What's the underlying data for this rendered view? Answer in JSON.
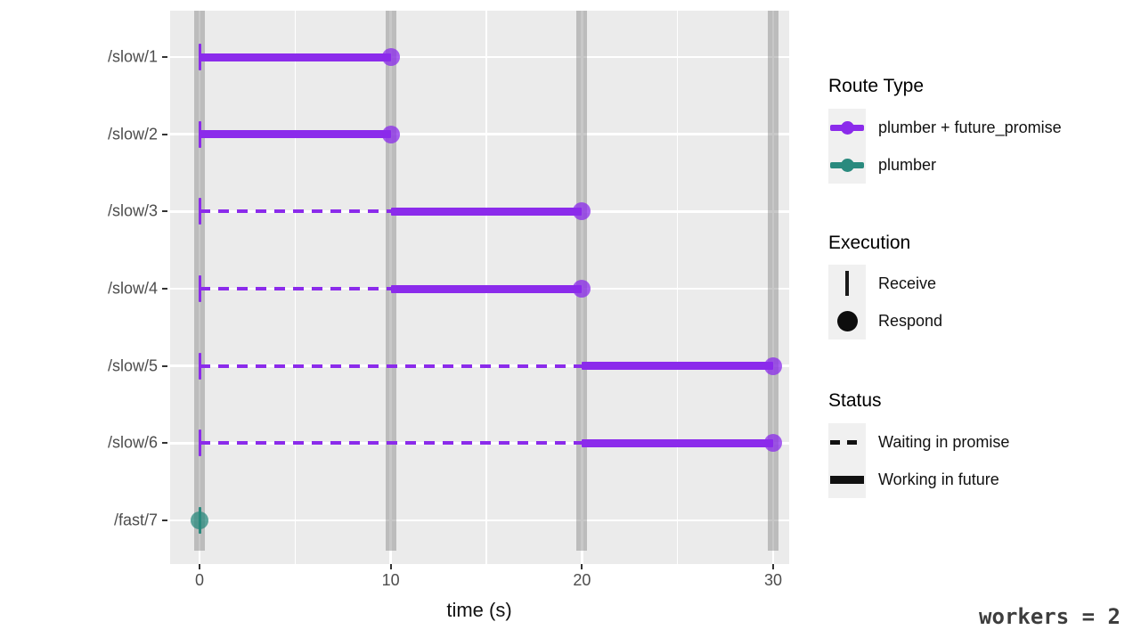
{
  "workers_label": "workers = 2",
  "legend": {
    "route_type": {
      "title": "Route Type",
      "items": [
        {
          "label": "plumber + future_promise",
          "color": "#8B2BEB"
        },
        {
          "label": "plumber",
          "color": "#2A8A7E"
        }
      ]
    },
    "execution": {
      "title": "Execution",
      "items": [
        {
          "label": "Receive"
        },
        {
          "label": "Respond"
        }
      ]
    },
    "status": {
      "title": "Status",
      "items": [
        {
          "label": "Waiting in promise"
        },
        {
          "label": "Working in future"
        }
      ]
    }
  },
  "chart_data": {
    "type": "gantt-timeline",
    "xlabel": "time (s)",
    "x_ticks": [
      0,
      10,
      20,
      30
    ],
    "x_minor_ticks": [
      5,
      15,
      25
    ],
    "xlim": [
      -1.5,
      31.5
    ],
    "grid": "white-on-gray",
    "legend_position": "right",
    "worker_availability_times": [
      0,
      10,
      20,
      30
    ],
    "categories": [
      "/slow/1",
      "/slow/2",
      "/slow/3",
      "/slow/4",
      "/slow/5",
      "/slow/6",
      "/fast/7"
    ],
    "colors": {
      "plumber + future_promise": "#8B2BEB",
      "plumber": "#2A8A7E"
    },
    "series": [
      {
        "route": "/slow/1",
        "route_type": "plumber + future_promise",
        "receive": 0,
        "waiting": [
          0,
          0
        ],
        "working": [
          0,
          10
        ],
        "respond": 10
      },
      {
        "route": "/slow/2",
        "route_type": "plumber + future_promise",
        "receive": 0,
        "waiting": [
          0,
          0
        ],
        "working": [
          0,
          10
        ],
        "respond": 10
      },
      {
        "route": "/slow/3",
        "route_type": "plumber + future_promise",
        "receive": 0,
        "waiting": [
          0,
          10
        ],
        "working": [
          10,
          20
        ],
        "respond": 20
      },
      {
        "route": "/slow/4",
        "route_type": "plumber + future_promise",
        "receive": 0,
        "waiting": [
          0,
          10
        ],
        "working": [
          10,
          20
        ],
        "respond": 20
      },
      {
        "route": "/slow/5",
        "route_type": "plumber + future_promise",
        "receive": 0,
        "waiting": [
          0,
          20
        ],
        "working": [
          20,
          30
        ],
        "respond": 30
      },
      {
        "route": "/slow/6",
        "route_type": "plumber + future_promise",
        "receive": 0,
        "waiting": [
          0,
          20
        ],
        "working": [
          20,
          30
        ],
        "respond": 30
      },
      {
        "route": "/fast/7",
        "route_type": "plumber",
        "receive": 0,
        "waiting": [
          0,
          0
        ],
        "working": [
          0,
          0
        ],
        "respond": 0
      }
    ]
  }
}
